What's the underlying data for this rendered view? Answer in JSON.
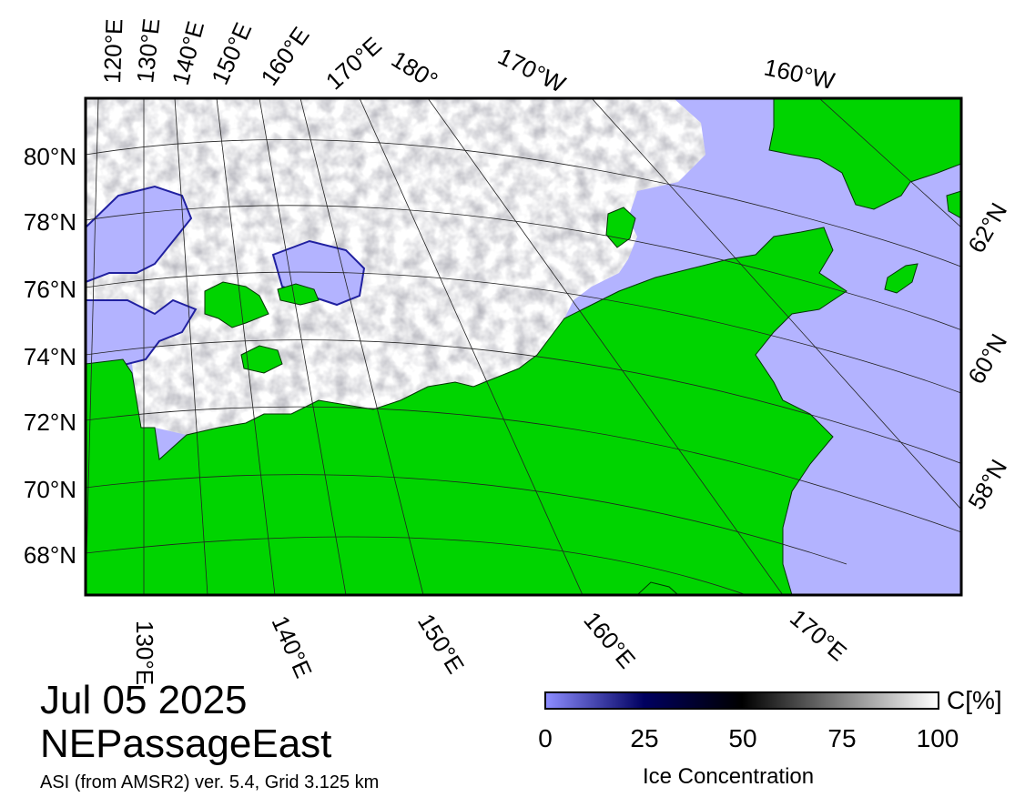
{
  "map": {
    "colors": {
      "land": "#00d400",
      "ocean": "#b3b3ff",
      "ice_low": "#6b6bff",
      "ice_mid": "#000000",
      "ice_high": "#ffffff",
      "frame": "#000000"
    },
    "lon_labels_top": [
      "120°E",
      "130°E",
      "140°E",
      "150°E",
      "160°E",
      "170°E",
      "180°",
      "170°W",
      "160°W"
    ],
    "lon_labels_bottom": [
      "130°E",
      "140°E",
      "150°E",
      "160°E",
      "170°E"
    ],
    "lat_labels_left": [
      "80°N",
      "78°N",
      "76°N",
      "74°N",
      "72°N",
      "70°N",
      "68°N"
    ],
    "lat_labels_right": [
      "62°N",
      "60°N",
      "58°N"
    ]
  },
  "legend": {
    "date": "Jul 05 2025",
    "region": "NEPassageEast",
    "product": "ASI (from AMSR2) ver. 5.4,  Grid 3.125 km",
    "colorbar": {
      "unit": "C[%]",
      "ticks": [
        "0",
        "25",
        "50",
        "75",
        "100"
      ],
      "label": "Ice Concentration",
      "stops": [
        "#8c8cff",
        "#000060",
        "#000000",
        "#ffffff"
      ]
    }
  }
}
